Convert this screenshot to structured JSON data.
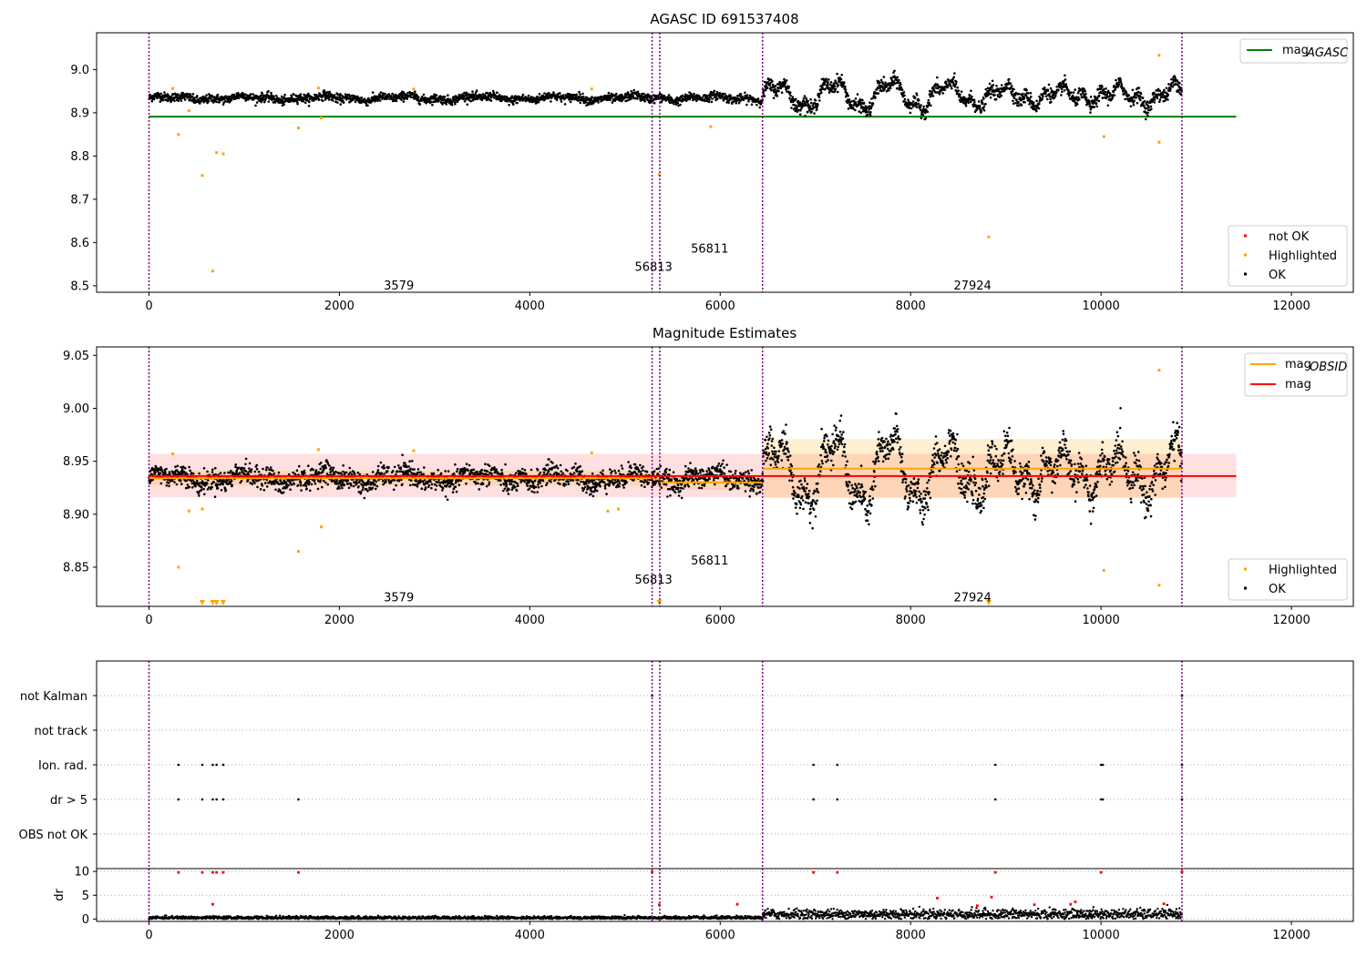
{
  "colors": {
    "ok": "#000000",
    "highlighted": "#ffa500",
    "not_ok": "#ff0000",
    "agasc_line": "#008000",
    "mag_line": "#ff0000",
    "obsid_line": "#ffa500",
    "obs_boundary": "#800080"
  },
  "chart_data": [
    {
      "type": "scatter",
      "title": "AGASC ID 691537408",
      "xlim": [
        -550,
        12650
      ],
      "ylim": [
        8.485,
        9.085
      ],
      "xticks": [
        "0",
        "2000",
        "4000",
        "6000",
        "8000",
        "10000",
        "12000"
      ],
      "yticks": [
        "8.5",
        "8.6",
        "8.7",
        "8.8",
        "8.9",
        "9.0"
      ],
      "mag_agasc": 8.891,
      "mag_agasc_xrange": [
        0,
        11420
      ],
      "obs_boundaries": [
        0,
        5285,
        5365,
        6445,
        10850
      ],
      "obs_labels": [
        {
          "text": "3579",
          "x": 2625,
          "y": 8.502
        },
        {
          "text": "56813",
          "x": 5300,
          "y": 8.545
        },
        {
          "text": "56811",
          "x": 5890,
          "y": 8.587
        },
        {
          "text": "27924",
          "x": 8650,
          "y": 8.502
        }
      ],
      "legend_lines": [
        {
          "label": "mag",
          "sub": "AGASC"
        }
      ],
      "legend_markers": [
        "not OK",
        "Highlighted",
        "OK"
      ],
      "highlighted_points": [
        [
          310,
          8.85
        ],
        [
          560,
          8.755
        ],
        [
          670,
          8.534
        ],
        [
          710,
          8.808
        ],
        [
          780,
          8.805
        ],
        [
          1570,
          8.865
        ],
        [
          5360,
          8.757
        ],
        [
          5900,
          8.868
        ],
        [
          8820,
          8.613
        ],
        [
          10030,
          8.845
        ],
        [
          10610,
          8.832
        ],
        [
          10610,
          9.033
        ],
        [
          250,
          8.956
        ],
        [
          1780,
          8.957
        ],
        [
          2780,
          8.955
        ],
        [
          4650,
          8.955
        ],
        [
          420,
          8.905
        ],
        [
          1810,
          8.888
        ]
      ]
    },
    {
      "type": "scatter",
      "title": "Magnitude Estimates",
      "xlim": [
        -550,
        12650
      ],
      "ylim": [
        8.813,
        9.058
      ],
      "xticks": [
        "0",
        "2000",
        "4000",
        "6000",
        "8000",
        "10000",
        "12000"
      ],
      "yticks": [
        "8.85",
        "8.90",
        "8.95",
        "9.00",
        "9.05"
      ],
      "mag": 8.936,
      "mag_band": [
        8.916,
        8.957
      ],
      "mag_xrange": [
        0,
        11420
      ],
      "obsid_segments": [
        {
          "x": [
            0,
            5285
          ],
          "mag": 8.934,
          "band": [
            8.927,
            8.941
          ]
        },
        {
          "x": [
            5285,
            5365
          ],
          "mag": 8.933,
          "band": [
            8.926,
            8.94
          ]
        },
        {
          "x": [
            5365,
            6445
          ],
          "mag": 8.93,
          "band": [
            8.923,
            8.937
          ]
        },
        {
          "x": [
            6445,
            10850
          ],
          "mag": 8.943,
          "band": [
            8.915,
            8.971
          ]
        }
      ],
      "obs_labels": [
        {
          "text": "3579",
          "x": 2625,
          "y": 8.822
        },
        {
          "text": "56813",
          "x": 5300,
          "y": 8.839
        },
        {
          "text": "56811",
          "x": 5890,
          "y": 8.857
        },
        {
          "text": "27924",
          "x": 8650,
          "y": 8.822
        }
      ],
      "legend_lines": [
        {
          "label": "mag",
          "sub": "OBSID"
        },
        {
          "label": "mag",
          "sub": ""
        }
      ],
      "legend_markers": [
        "Highlighted",
        "OK"
      ],
      "highlighted_points": [
        [
          310,
          8.85
        ],
        [
          1570,
          8.865
        ],
        [
          1810,
          8.888
        ],
        [
          10030,
          8.847
        ],
        [
          10610,
          8.833
        ],
        [
          10610,
          9.036
        ],
        [
          420,
          8.903
        ],
        [
          560,
          8.905
        ],
        [
          250,
          8.957
        ],
        [
          1780,
          8.961
        ],
        [
          2780,
          8.96
        ],
        [
          4650,
          8.958
        ],
        [
          4820,
          8.903
        ],
        [
          4930,
          8.905
        ]
      ],
      "offscale_markers": [
        560,
        670,
        710,
        780,
        5360,
        8820
      ]
    },
    {
      "type": "scatter",
      "title": "",
      "ylabels": [
        "not Kalman",
        "not track",
        "Ion. rad.",
        "dr > 5",
        "OBS not OK"
      ],
      "flag_points": {
        "not Kalman": [
          5285,
          10850
        ],
        "not track": [],
        "Ion. rad.": [
          310,
          560,
          670,
          710,
          780,
          6980,
          7230,
          8890,
          10000,
          10020,
          10850
        ],
        "dr > 5": [
          310,
          560,
          670,
          710,
          780,
          1570,
          6980,
          7230,
          8890,
          10000,
          10020,
          10850
        ],
        "OBS not OK": []
      }
    },
    {
      "type": "scatter",
      "title": "",
      "ylabel": "dr",
      "ylim": [
        -0.5,
        10.6
      ],
      "yticks": [
        "0",
        "5",
        "10"
      ],
      "xticks": [
        "0",
        "2000",
        "4000",
        "6000",
        "8000",
        "10000",
        "12000"
      ],
      "red_points": [
        [
          310,
          9.8
        ],
        [
          560,
          9.8
        ],
        [
          670,
          9.8
        ],
        [
          710,
          9.8
        ],
        [
          780,
          9.8
        ],
        [
          1570,
          9.8
        ],
        [
          5285,
          9.9
        ],
        [
          6980,
          9.8
        ],
        [
          7230,
          9.8
        ],
        [
          8890,
          9.8
        ],
        [
          10000,
          9.8
        ],
        [
          10850,
          9.9
        ],
        [
          670,
          3.1
        ],
        [
          5360,
          3.0
        ],
        [
          6180,
          3.1
        ],
        [
          8280,
          4.4
        ],
        [
          8700,
          2.8
        ],
        [
          8850,
          4.6
        ],
        [
          9300,
          3.0
        ],
        [
          9680,
          3.1
        ],
        [
          9730,
          3.6
        ],
        [
          10660,
          3.2
        ]
      ]
    }
  ]
}
